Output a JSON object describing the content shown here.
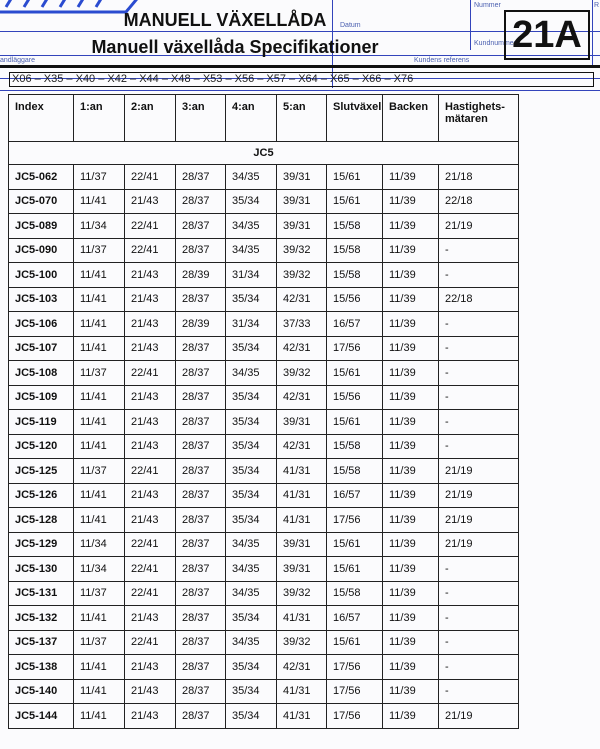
{
  "header": {
    "title": "MANUELL VÄXELLÅDA",
    "subtitle": "Manuell växellåda Specifikationer",
    "code": "21A",
    "form_labels": {
      "handlaggare": "andläggare",
      "datum": "Datum",
      "kundens_referens": "Kundens referens",
      "nummer": "Nummer",
      "kundnummer": "Kundnummer",
      "r": "R"
    },
    "models": "X06 – X35 – X40 – X42 – X44 – X48 – X53 – X56 – X57 – X64 – X65 – X66 – X76",
    "logo_color": "#2a4bd0"
  },
  "table": {
    "columns": [
      "Index",
      "1:an",
      "2:an",
      "3:an",
      "4:an",
      "5:an",
      "Slutväxel",
      "Backen",
      "Hastighets-mätaren"
    ],
    "group": "JC5",
    "rows": [
      [
        "JC5-062",
        "11/37",
        "22/41",
        "28/37",
        "34/35",
        "39/31",
        "15/61",
        "11/39",
        "21/18"
      ],
      [
        "JC5-070",
        "11/41",
        "21/43",
        "28/37",
        "35/34",
        "39/31",
        "15/61",
        "11/39",
        "22/18"
      ],
      [
        "JC5-089",
        "11/34",
        "22/41",
        "28/37",
        "34/35",
        "39/31",
        "15/58",
        "11/39",
        "21/19"
      ],
      [
        "JC5-090",
        "11/37",
        "22/41",
        "28/37",
        "34/35",
        "39/32",
        "15/58",
        "11/39",
        "-"
      ],
      [
        "JC5-100",
        "11/41",
        "21/43",
        "28/39",
        "31/34",
        "39/32",
        "15/58",
        "11/39",
        "-"
      ],
      [
        "JC5-103",
        "11/41",
        "21/43",
        "28/37",
        "35/34",
        "42/31",
        "15/56",
        "11/39",
        "22/18"
      ],
      [
        "JC5-106",
        "11/41",
        "21/43",
        "28/39",
        "31/34",
        "37/33",
        "16/57",
        "11/39",
        "-"
      ],
      [
        "JC5-107",
        "11/41",
        "21/43",
        "28/37",
        "35/34",
        "42/31",
        "17/56",
        "11/39",
        "-"
      ],
      [
        "JC5-108",
        "11/37",
        "22/41",
        "28/37",
        "34/35",
        "39/32",
        "15/61",
        "11/39",
        "-"
      ],
      [
        "JC5-109",
        "11/41",
        "21/43",
        "28/37",
        "35/34",
        "42/31",
        "15/56",
        "11/39",
        "-"
      ],
      [
        "JC5-119",
        "11/41",
        "21/43",
        "28/37",
        "35/34",
        "39/31",
        "15/61",
        "11/39",
        "-"
      ],
      [
        "JC5-120",
        "11/41",
        "21/43",
        "28/37",
        "35/34",
        "42/31",
        "15/58",
        "11/39",
        "-"
      ],
      [
        "JC5-125",
        "11/37",
        "22/41",
        "28/37",
        "35/34",
        "41/31",
        "15/58",
        "11/39",
        "21/19"
      ],
      [
        "JC5-126",
        "11/41",
        "21/43",
        "28/37",
        "35/34",
        "41/31",
        "16/57",
        "11/39",
        "21/19"
      ],
      [
        "JC5-128",
        "11/41",
        "21/43",
        "28/37",
        "35/34",
        "41/31",
        "17/56",
        "11/39",
        "21/19"
      ],
      [
        "JC5-129",
        "11/34",
        "22/41",
        "28/37",
        "34/35",
        "39/31",
        "15/61",
        "11/39",
        "21/19"
      ],
      [
        "JC5-130",
        "11/34",
        "22/41",
        "28/37",
        "34/35",
        "39/31",
        "15/61",
        "11/39",
        "-"
      ],
      [
        "JC5-131",
        "11/37",
        "22/41",
        "28/37",
        "34/35",
        "39/32",
        "15/58",
        "11/39",
        "-"
      ],
      [
        "JC5-132",
        "11/41",
        "21/43",
        "28/37",
        "35/34",
        "41/31",
        "16/57",
        "11/39",
        "-"
      ],
      [
        "JC5-137",
        "11/37",
        "22/41",
        "28/37",
        "34/35",
        "39/32",
        "15/61",
        "11/39",
        "-"
      ],
      [
        "JC5-138",
        "11/41",
        "21/43",
        "28/37",
        "35/34",
        "42/31",
        "17/56",
        "11/39",
        "-"
      ],
      [
        "JC5-140",
        "11/41",
        "21/43",
        "28/37",
        "35/34",
        "41/31",
        "17/56",
        "11/39",
        "-"
      ],
      [
        "JC5-144",
        "11/41",
        "21/43",
        "28/37",
        "35/34",
        "41/31",
        "17/56",
        "11/39",
        "21/19"
      ]
    ]
  }
}
